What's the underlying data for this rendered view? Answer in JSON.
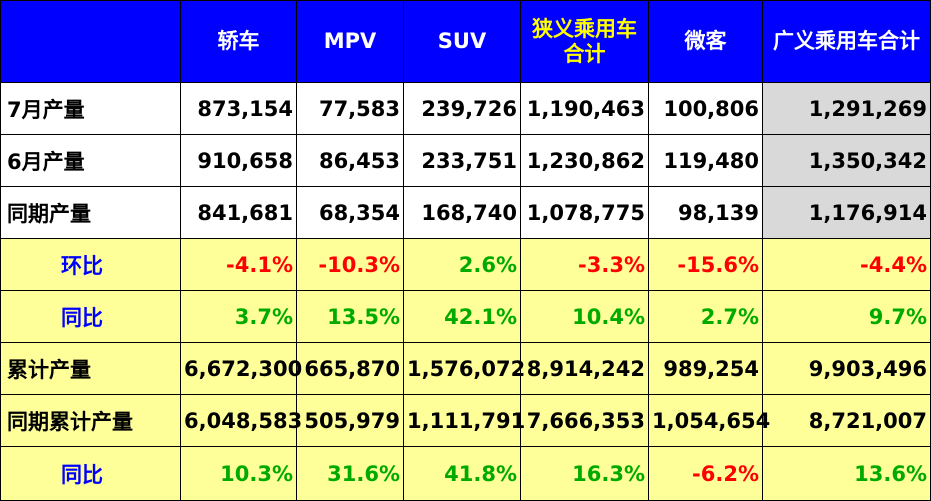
{
  "header": [
    "",
    "轿车",
    "MPV",
    "SUV",
    "狭义乘用车\n合计",
    "微客",
    "广义乘用车合计"
  ],
  "rows": [
    {
      "label": "7月产量",
      "values": [
        "873,154",
        "77,583",
        "239,726",
        "1,190,463",
        "100,806",
        "1,291,269"
      ]
    },
    {
      "label": "6月产量",
      "values": [
        "910,658",
        "86,453",
        "233,751",
        "1,230,862",
        "119,480",
        "1,350,342"
      ]
    },
    {
      "label": "同期产量",
      "values": [
        "841,681",
        "68,354",
        "168,740",
        "1,078,775",
        "98,139",
        "1,176,914"
      ]
    }
  ],
  "ratios": [
    {
      "label": "环比",
      "values": [
        "-4.1%",
        "-10.3%",
        "2.6%",
        "-3.3%",
        "-15.6%",
        "-4.4%"
      ]
    },
    {
      "label": "同比",
      "values": [
        "3.7%",
        "13.5%",
        "42.1%",
        "10.4%",
        "2.7%",
        "9.7%"
      ]
    }
  ],
  "ytd": [
    {
      "label": "累计产量",
      "values": [
        "6,672,300",
        "665,870",
        "1,576,072",
        "8,914,242",
        "989,254",
        "9,903,496"
      ]
    },
    {
      "label": "同期累计产量",
      "values": [
        "6,048,583",
        "505,979",
        "1,111,791",
        "7,666,353",
        "1,054,654",
        "8,721,007"
      ]
    }
  ],
  "ytd_ratio": {
    "label": "同比",
    "values": [
      "10.3%",
      "31.6%",
      "41.8%",
      "16.3%",
      "-6.2%",
      "13.6%"
    ]
  },
  "colors": {
    "header_bg": "#0000ff",
    "header_text": "#ffffff",
    "highlight_text": "#ffff00",
    "ratio_bg": "#ffff99",
    "total_bg": "#d9d9d9",
    "negative": "#ff0000",
    "positive": "#00aa00",
    "ratio_label": "#0000ff"
  }
}
